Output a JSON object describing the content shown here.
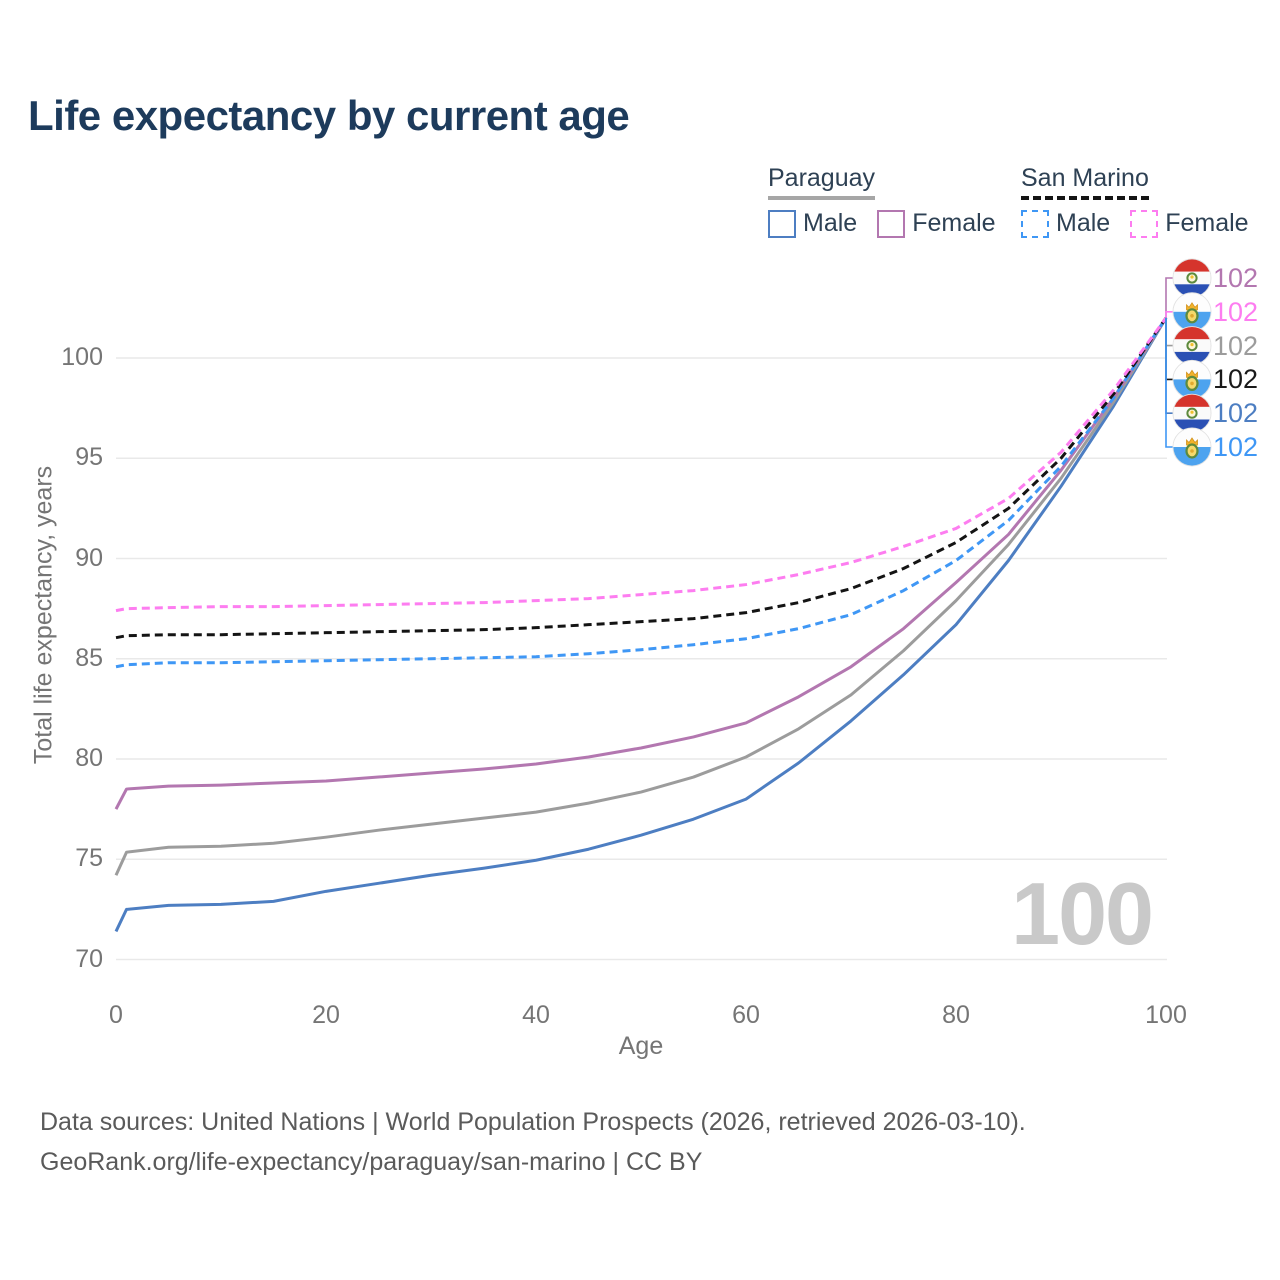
{
  "title": "Life expectancy by current age",
  "legend": {
    "groups": [
      {
        "name": "Paraguay",
        "line_style": "solid",
        "underline_color": "#a6a6a6",
        "items": [
          {
            "label": "Male",
            "color": "#4d7ec2"
          },
          {
            "label": "Female",
            "color": "#b377b0"
          }
        ]
      },
      {
        "name": "San Marino",
        "line_style": "dashed",
        "underline_color": "#141414",
        "items": [
          {
            "label": "Male",
            "color": "#3f97f5"
          },
          {
            "label": "Female",
            "color": "#fd7df0"
          }
        ]
      }
    ]
  },
  "chart_data": {
    "type": "line",
    "title": "Life expectancy by current age",
    "xlabel": "Age",
    "ylabel": "Total life expectancy, years",
    "xlim": [
      0,
      100
    ],
    "ylim": [
      69,
      103
    ],
    "xticks": [
      0,
      20,
      40,
      60,
      80,
      100
    ],
    "yticks": [
      70,
      75,
      80,
      85,
      90,
      95,
      100
    ],
    "grid": "horizontal",
    "legend_position": "top-right",
    "x": [
      0,
      1,
      5,
      10,
      15,
      20,
      25,
      30,
      35,
      40,
      45,
      50,
      55,
      60,
      65,
      70,
      75,
      80,
      85,
      90,
      95,
      100
    ],
    "series": [
      {
        "name": "Paraguay Male",
        "country": "Paraguay",
        "sex": "male",
        "color": "#4d7ec2",
        "dash": false,
        "values": [
          71.4,
          72.5,
          72.7,
          72.75,
          72.9,
          73.4,
          73.8,
          74.2,
          74.55,
          74.95,
          75.5,
          76.2,
          77.0,
          78.0,
          79.8,
          81.9,
          84.2,
          86.7,
          89.9,
          93.6,
          97.6,
          102
        ]
      },
      {
        "name": "Paraguay Total",
        "country": "Paraguay",
        "sex": "all",
        "color": "#9c9c9c",
        "dash": false,
        "values": [
          74.2,
          75.35,
          75.6,
          75.65,
          75.8,
          76.1,
          76.45,
          76.75,
          77.05,
          77.35,
          77.8,
          78.35,
          79.1,
          80.1,
          81.5,
          83.2,
          85.4,
          87.9,
          90.7,
          94.0,
          97.8,
          102
        ]
      },
      {
        "name": "Paraguay Female",
        "country": "Paraguay",
        "sex": "female",
        "color": "#b377b0",
        "dash": false,
        "values": [
          77.5,
          78.5,
          78.65,
          78.7,
          78.8,
          78.9,
          79.1,
          79.3,
          79.5,
          79.75,
          80.1,
          80.55,
          81.1,
          81.8,
          83.1,
          84.6,
          86.5,
          88.8,
          91.2,
          94.4,
          98.0,
          102
        ]
      },
      {
        "name": "San Marino Male",
        "country": "San Marino",
        "sex": "male",
        "color": "#3f97f5",
        "dash": true,
        "values": [
          84.6,
          84.7,
          84.8,
          84.8,
          84.85,
          84.9,
          84.95,
          85.0,
          85.05,
          85.1,
          85.25,
          85.45,
          85.7,
          86.0,
          86.5,
          87.2,
          88.4,
          89.9,
          91.9,
          94.6,
          98.0,
          102
        ]
      },
      {
        "name": "San Marino Total",
        "country": "San Marino",
        "sex": "all",
        "color": "#141414",
        "dash": true,
        "values": [
          86.05,
          86.15,
          86.2,
          86.2,
          86.25,
          86.3,
          86.35,
          86.4,
          86.45,
          86.55,
          86.7,
          86.85,
          87.0,
          87.3,
          87.8,
          88.5,
          89.5,
          90.8,
          92.5,
          95.0,
          98.2,
          102
        ]
      },
      {
        "name": "San Marino Female",
        "country": "San Marino",
        "sex": "female",
        "color": "#fd7df0",
        "dash": true,
        "values": [
          87.4,
          87.5,
          87.55,
          87.6,
          87.6,
          87.65,
          87.7,
          87.75,
          87.8,
          87.9,
          88.0,
          88.2,
          88.4,
          88.7,
          89.2,
          89.8,
          90.6,
          91.5,
          93.0,
          95.3,
          98.4,
          102
        ]
      }
    ]
  },
  "end_labels": [
    {
      "flag": "paraguay",
      "series": "Paraguay Female",
      "value": "102",
      "color": "#b377b0"
    },
    {
      "flag": "san-marino",
      "series": "San Marino Female",
      "value": "102",
      "color": "#fd7df0"
    },
    {
      "flag": "paraguay",
      "series": "Paraguay Total",
      "value": "102",
      "color": "#9c9c9c"
    },
    {
      "flag": "san-marino",
      "series": "San Marino Total",
      "value": "102",
      "color": "#1a1a1a"
    },
    {
      "flag": "paraguay",
      "series": "Paraguay Male",
      "value": "102",
      "color": "#4d7ec2"
    },
    {
      "flag": "san-marino",
      "series": "San Marino Male",
      "value": "102",
      "color": "#3f97f5"
    }
  ],
  "watermark": "100",
  "footer": {
    "line1": "Data sources: United Nations | World Population Prospects (2026, retrieved 2026-03-10).",
    "line2": "GeoRank.org/life-expectancy/paraguay/san-marino | CC BY"
  },
  "colors": {
    "title_text": "#1d3b5c",
    "axis_text": "#757575",
    "legend_text": "#2e4154",
    "gridline": "#e9e9e9",
    "watermark": "#c9c9c9",
    "footer_text": "#5a5a5a"
  }
}
